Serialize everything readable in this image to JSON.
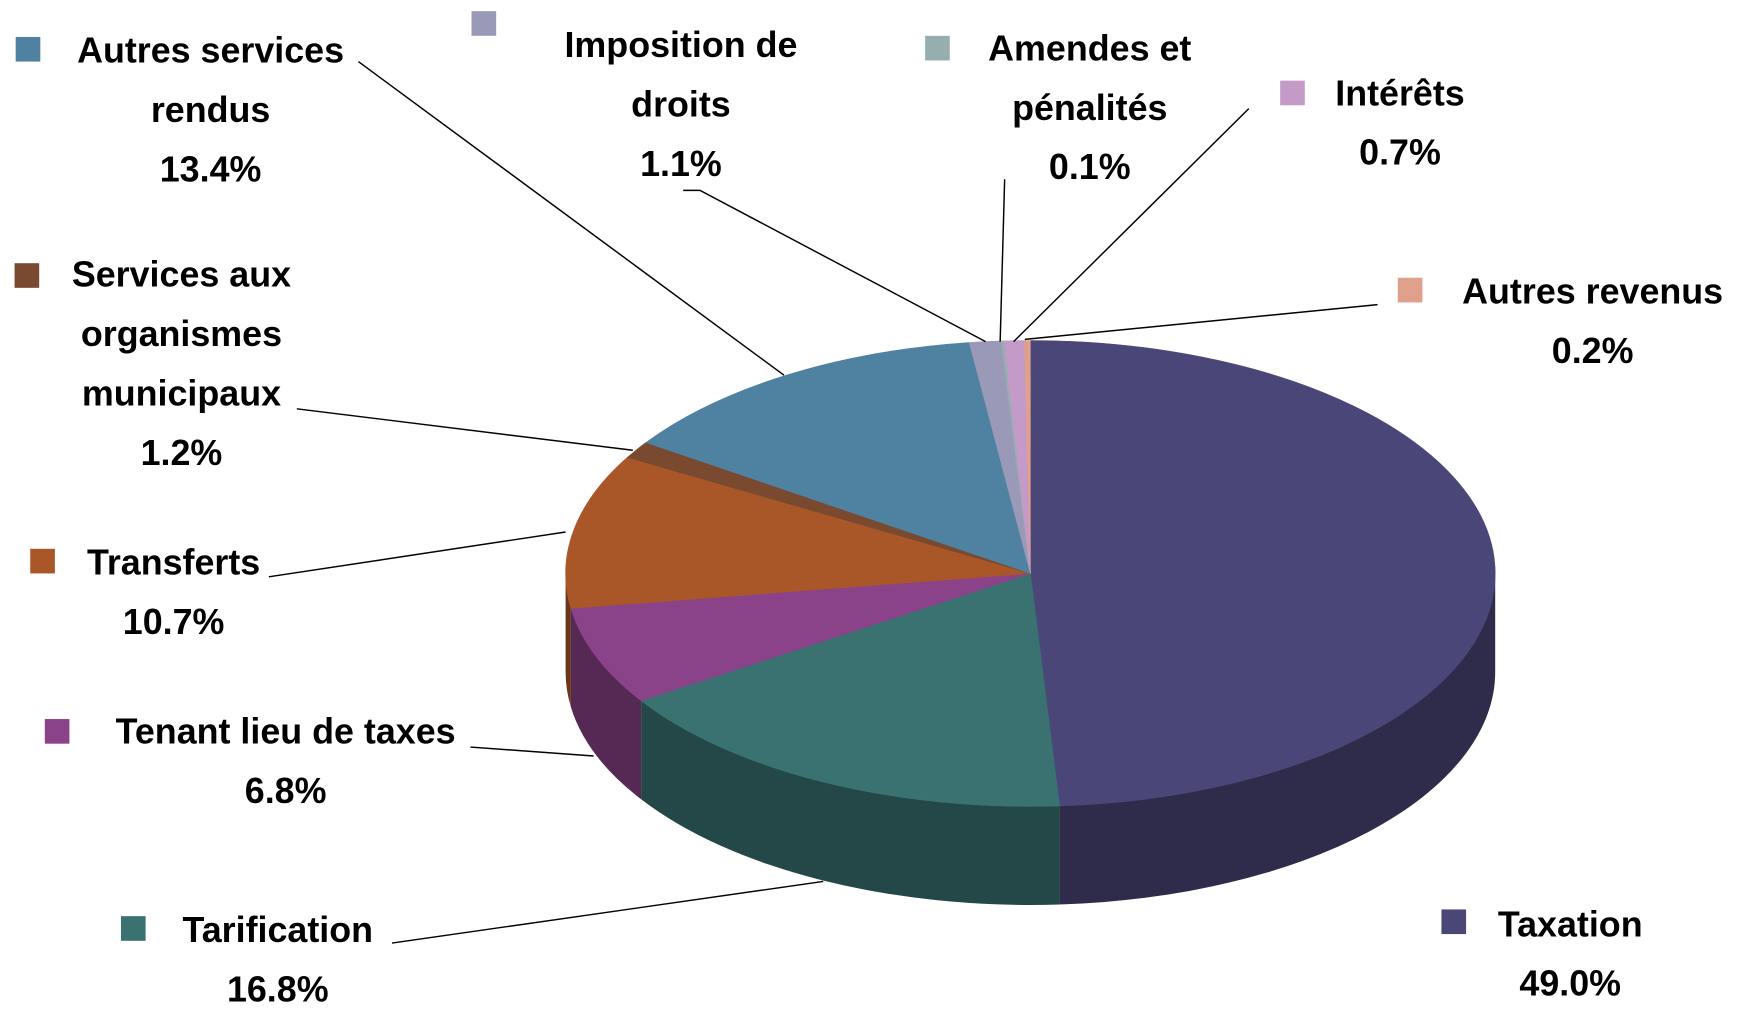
{
  "chart_data": {
    "type": "pie",
    "categories": [
      "Taxation",
      "Tarification",
      "Tenant lieu de taxes",
      "Transferts",
      "Services aux organismes municipaux",
      "Autres services rendus",
      "Imposition de droits",
      "Amendes et pénalités",
      "Intérêts",
      "Autres revenus"
    ],
    "values": [
      49.0,
      16.8,
      6.8,
      10.7,
      1.2,
      13.4,
      1.1,
      0.1,
      0.7,
      0.2
    ],
    "value_labels": [
      "49.0%",
      "16.8%",
      "6.8%",
      "10.7%",
      "1.2%",
      "13.4%",
      "1.1%",
      "0.1%",
      "0.7%",
      "0.2%"
    ],
    "colors": [
      "#4a4778",
      "#3a7272",
      "#8a4288",
      "#a95728",
      "#7a4a30",
      "#4f81a0",
      "#9a9ab8",
      "#97aeae",
      "#c49ac8",
      "#e0a08c"
    ]
  }
}
